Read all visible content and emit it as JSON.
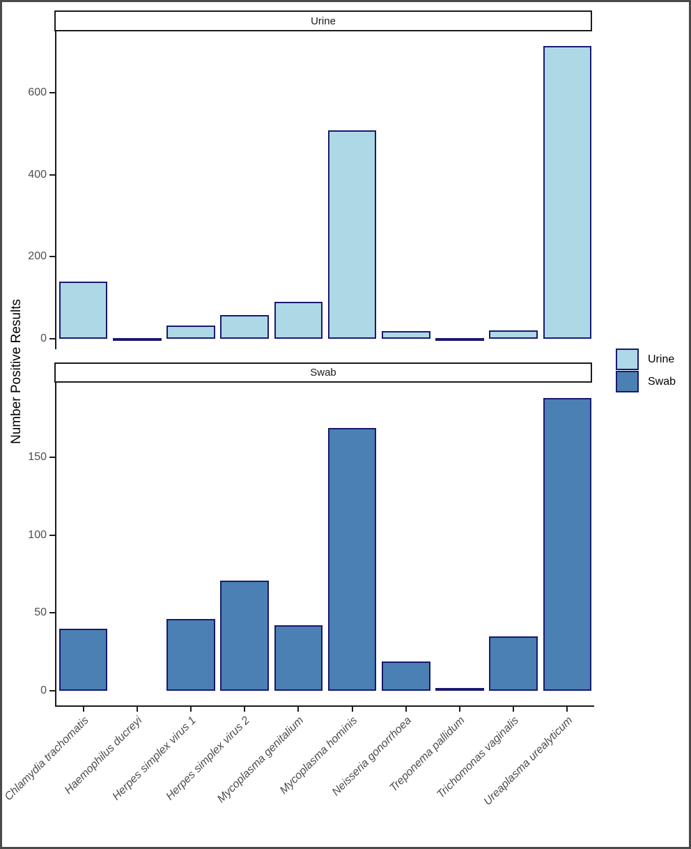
{
  "chart_data": {
    "type": "bar",
    "title": "",
    "xlabel": "",
    "ylabel": "Number Positive Results",
    "grid": false,
    "legend_position": "right",
    "bar_outline_color": "#191970",
    "axis_color": "#1a1a1a",
    "tick_label_color": "#4d4d4d",
    "categories": [
      "Chlamydia trachomatis",
      "Haemophilus ducreyi",
      "Herpes simplex virus 1",
      "Herpes simplex virus 2",
      "Mycoplasma genitalium",
      "Mycoplasma hominis",
      "Neisseria gonorrhoea",
      "Treponema pallidum",
      "Trichomonas vaginalis",
      "Ureaplasma urealyticum"
    ],
    "facets": [
      {
        "label": "Urine",
        "fill": "#ADD8E6",
        "values": [
          140,
          1,
          33,
          57,
          90,
          508,
          19,
          1,
          21,
          715
        ],
        "y_ticks": [
          0,
          200,
          400,
          600
        ],
        "ylim": [
          0,
          750
        ]
      },
      {
        "label": "Swab",
        "fill": "#4A80B4",
        "values": [
          40,
          0,
          46,
          71,
          42,
          169,
          19,
          2,
          35,
          188
        ],
        "y_ticks": [
          0,
          50,
          100,
          150
        ],
        "ylim": [
          0,
          198
        ]
      }
    ]
  },
  "legend": {
    "items": [
      {
        "label": "Urine",
        "color": "#ADD8E6"
      },
      {
        "label": "Swab",
        "color": "#4A80B4"
      }
    ]
  }
}
